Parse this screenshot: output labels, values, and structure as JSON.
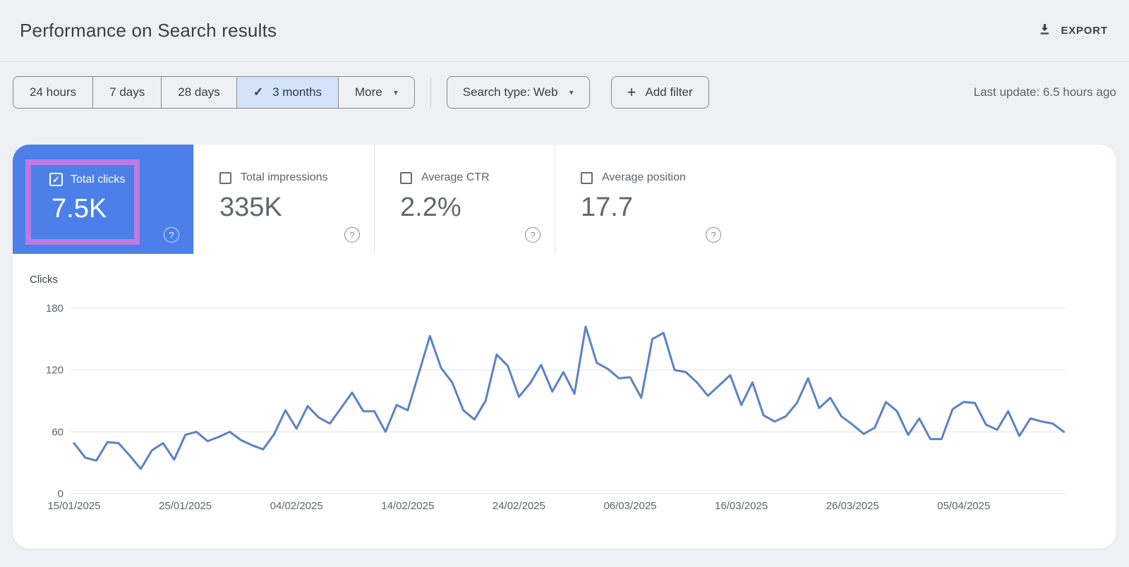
{
  "header": {
    "title": "Performance on Search results",
    "export_label": "EXPORT"
  },
  "toolbar": {
    "date_ranges": [
      {
        "label": "24 hours",
        "selected": false
      },
      {
        "label": "7 days",
        "selected": false
      },
      {
        "label": "28 days",
        "selected": false
      },
      {
        "label": "3 months",
        "selected": true
      }
    ],
    "more_label": "More",
    "search_type_label": "Search type: Web",
    "add_filter_label": "Add filter",
    "last_update": "Last update: 6.5 hours ago"
  },
  "metrics": [
    {
      "label": "Total clicks",
      "value": "7.5K",
      "checked": true,
      "highlighted": true
    },
    {
      "label": "Total impressions",
      "value": "335K",
      "checked": false
    },
    {
      "label": "Average CTR",
      "value": "2.2%",
      "checked": false
    },
    {
      "label": "Average position",
      "value": "17.7",
      "checked": false
    }
  ],
  "icons": {
    "check": "✓",
    "caret_down": "▾",
    "plus": "+",
    "question": "?"
  },
  "colors": {
    "accent_blue": "#4c80e8",
    "highlight_purple": "#bc7ae4",
    "selected_chip_bg": "#d5e3f8",
    "line_blue": "#5b82c6",
    "grid": "#e9ebee",
    "page_bg": "#eef0f4"
  },
  "chart_data": {
    "type": "line",
    "ylabel": "Clicks",
    "y_ticks": [
      0,
      60,
      120,
      180
    ],
    "ylim": [
      0,
      180
    ],
    "grid": true,
    "line_color": "#5b82c6",
    "x_tick_labels": [
      "15/01/2025",
      "25/01/2025",
      "04/02/2025",
      "14/02/2025",
      "24/02/2025",
      "06/03/2025",
      "16/03/2025",
      "26/03/2025",
      "05/04/2025"
    ],
    "x_tick_indices": [
      0,
      10,
      20,
      30,
      40,
      50,
      60,
      70,
      80
    ],
    "series": [
      {
        "name": "Clicks",
        "start_date": "15/01/2025",
        "interval_days": 1,
        "values": [
          49,
          35,
          32,
          50,
          49,
          37,
          24,
          42,
          49,
          33,
          57,
          60,
          51,
          55,
          60,
          52,
          47,
          43,
          58,
          81,
          63,
          85,
          74,
          68,
          83,
          98,
          80,
          80,
          60,
          86,
          81,
          117,
          153,
          122,
          108,
          81,
          72,
          90,
          135,
          124,
          94,
          107,
          125,
          99,
          118,
          97,
          162,
          127,
          121,
          112,
          113,
          93,
          150,
          156,
          120,
          118,
          108,
          95,
          105,
          115,
          86,
          108,
          76,
          70,
          75,
          88,
          112,
          83,
          93,
          75,
          67,
          58,
          64,
          89,
          80,
          57,
          73,
          53,
          53,
          82,
          89,
          88,
          67,
          62,
          80,
          56,
          73,
          70,
          68,
          60
        ]
      }
    ]
  }
}
